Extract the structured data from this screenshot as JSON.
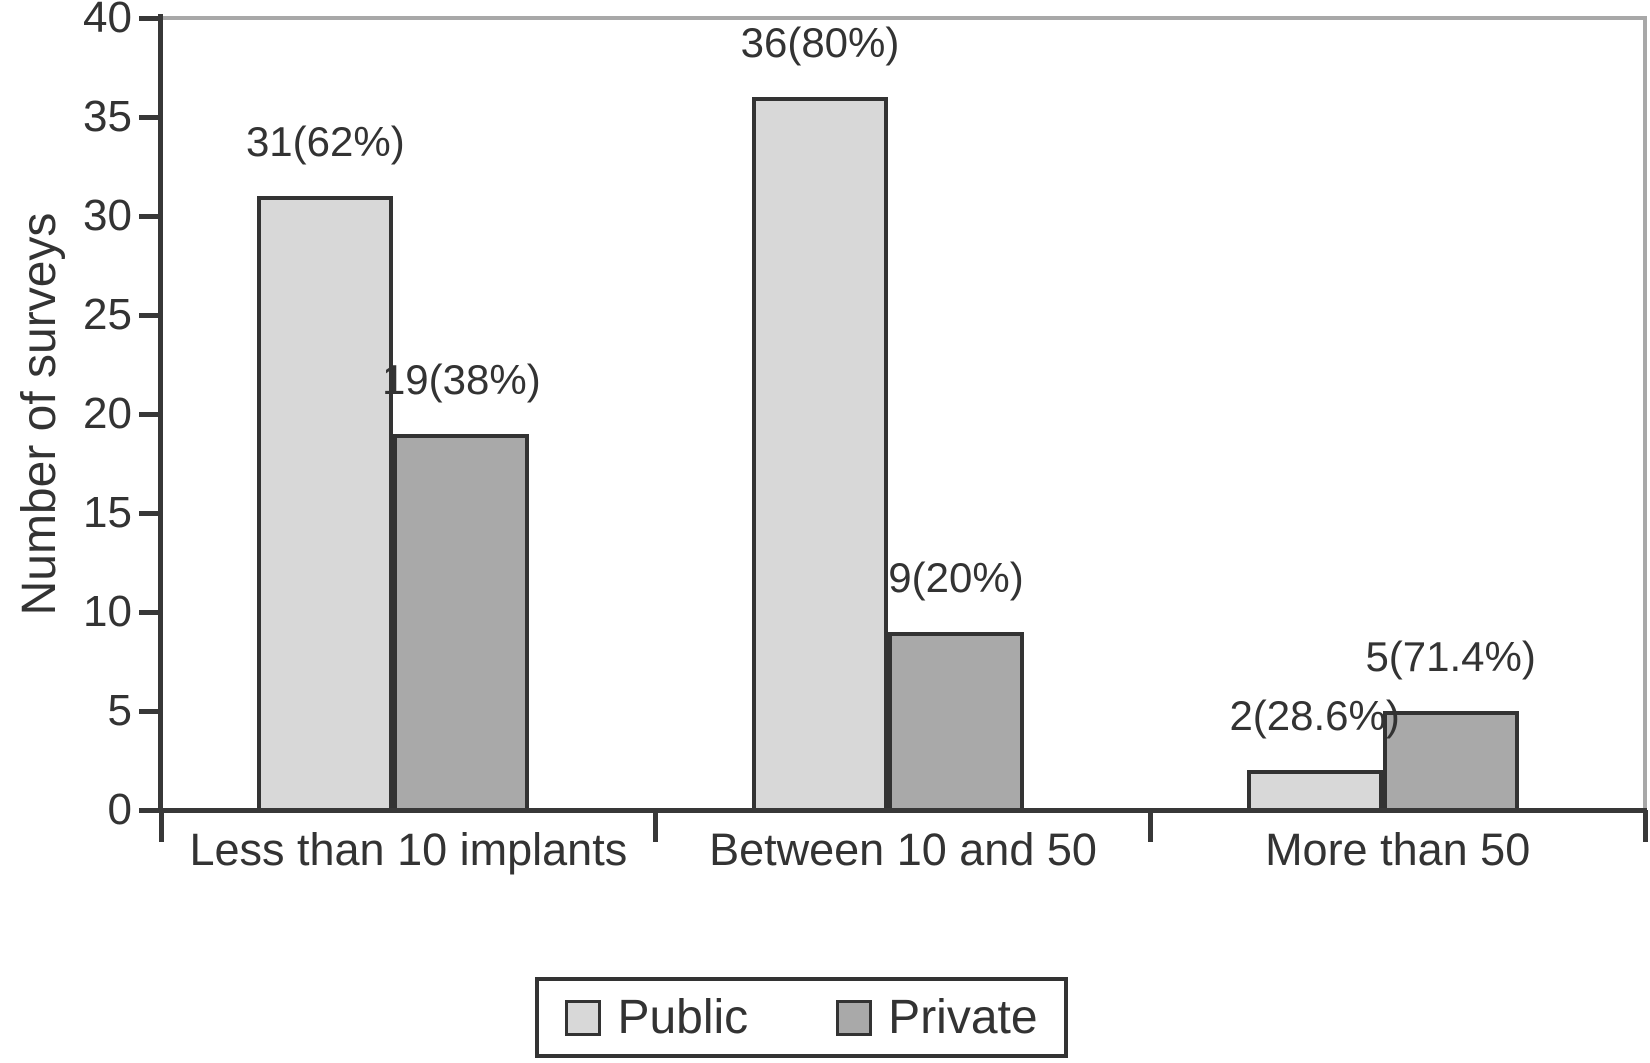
{
  "chart_data": {
    "type": "bar",
    "title": "",
    "categories": [
      "Less than 10 implants",
      "Between 10 and 50",
      "More than 50"
    ],
    "series": [
      {
        "name": "Public",
        "color": "#d8d8d8",
        "values": [
          31,
          36,
          2
        ],
        "data_labels": [
          "31(62%)",
          "36(80%)",
          "2(28.6%)"
        ]
      },
      {
        "name": "Private",
        "color": "#a9a9a9",
        "values": [
          19,
          9,
          5
        ],
        "data_labels": [
          "19(38%)",
          "9(20%)",
          "5(71.4%)"
        ]
      }
    ],
    "xlabel": "",
    "ylabel": "Number of surveys",
    "ylim": [
      0,
      40
    ],
    "yticks": [
      0,
      5,
      10,
      15,
      20,
      25,
      30,
      35,
      40
    ],
    "grid": "off",
    "legend": {
      "position": "bottom-center",
      "entries": [
        "Public",
        "Private"
      ]
    }
  },
  "colors": {
    "axis": "#383838",
    "frame": "#a8a8a8",
    "bar_border": "#333333",
    "text": "#333333",
    "background": "#ffffff"
  }
}
